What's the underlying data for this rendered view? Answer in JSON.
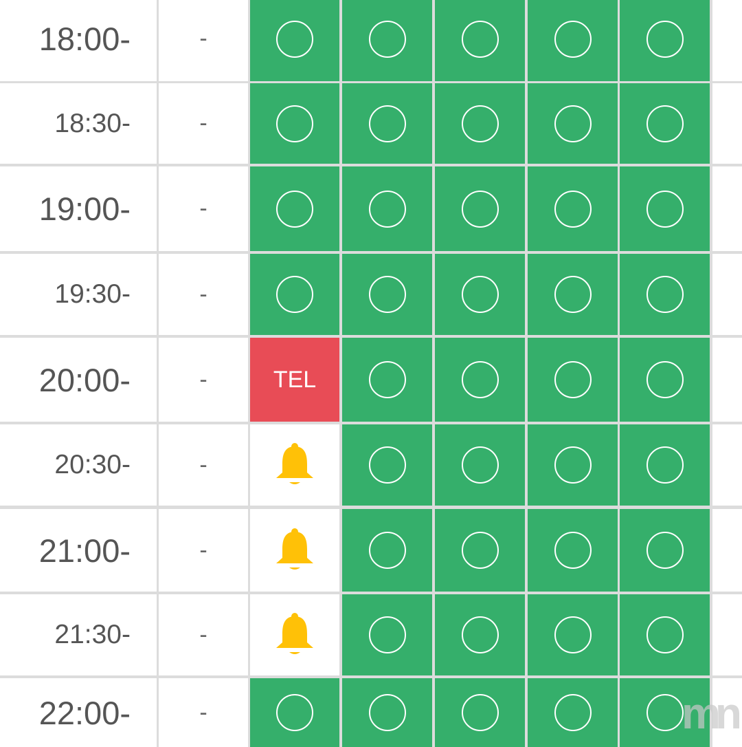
{
  "rows": [
    {
      "time": "18:00-",
      "dash": "-",
      "slots": [
        "o",
        "o",
        "o",
        "o",
        "o"
      ]
    },
    {
      "time": "18:30-",
      "dash": "-",
      "slots": [
        "o",
        "o",
        "o",
        "o",
        "o"
      ]
    },
    {
      "time": "19:00-",
      "dash": "-",
      "slots": [
        "o",
        "o",
        "o",
        "o",
        "o"
      ]
    },
    {
      "time": "19:30-",
      "dash": "-",
      "slots": [
        "o",
        "o",
        "o",
        "o",
        "o"
      ]
    },
    {
      "time": "20:00-",
      "dash": "-",
      "slots": [
        "tel",
        "o",
        "o",
        "o",
        "o"
      ]
    },
    {
      "time": "20:30-",
      "dash": "-",
      "slots": [
        "bell",
        "o",
        "o",
        "o",
        "o"
      ]
    },
    {
      "time": "21:00-",
      "dash": "-",
      "slots": [
        "bell",
        "o",
        "o",
        "o",
        "o"
      ]
    },
    {
      "time": "21:30-",
      "dash": "-",
      "slots": [
        "bell",
        "o",
        "o",
        "o",
        "o"
      ]
    },
    {
      "time": "22:00-",
      "dash": "-",
      "slots": [
        "o",
        "o",
        "o",
        "o",
        "o"
      ]
    }
  ],
  "tel_label": "TEL",
  "watermark": "mn",
  "colors": {
    "available": "#35af6b",
    "tel": "#e84c56",
    "bell": "#ffc107"
  }
}
